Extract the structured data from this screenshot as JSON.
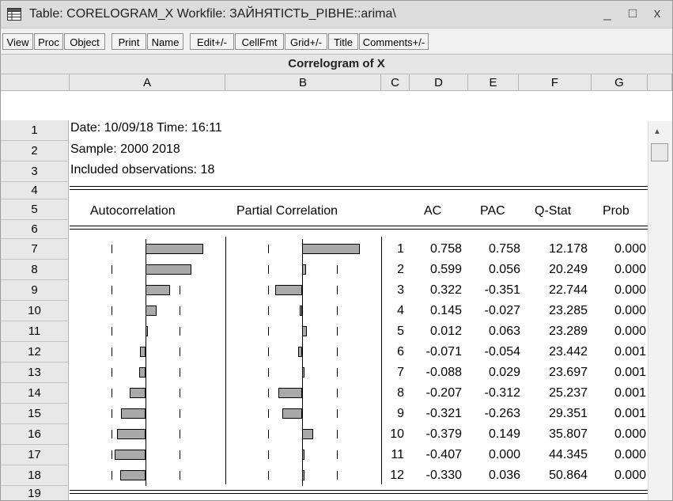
{
  "window": {
    "title": "Table: CORELOGRAM_X   Workfile: ЗАЙНЯТІСТЬ_РІВНЕ::arima\\",
    "minimize": "_",
    "maximize": "□",
    "close": "x"
  },
  "toolbar": {
    "buttons": [
      "View",
      "Proc",
      "Object",
      "Print",
      "Name",
      "Edit+/-",
      "CellFmt",
      "Grid+/-",
      "Title",
      "Comments+/-"
    ]
  },
  "table": {
    "caption": "Correlogram of X",
    "columns": [
      "A",
      "B",
      "C",
      "D",
      "E",
      "F",
      "G"
    ],
    "row_numbers": [
      "1",
      "2",
      "3",
      "4",
      "5",
      "6",
      "7",
      "8",
      "9",
      "10",
      "11",
      "12",
      "13",
      "14",
      "15",
      "16",
      "17",
      "18",
      "19"
    ],
    "date_line": "Date: 10/09/18   Time: 16:11",
    "sample_line": "Sample: 2000 2018",
    "obs_line": "Included observations: 18",
    "headers": {
      "autocorrelation": "Autocorrelation",
      "partial_correlation": "Partial Correlation",
      "ac": "AC",
      "pac": "PAC",
      "qstat": "Q-Stat",
      "prob": "Prob"
    },
    "rows": [
      {
        "lag": "1",
        "ac": "0.758",
        "pac": "0.758",
        "q": "12.178",
        "prob": "0.000"
      },
      {
        "lag": "2",
        "ac": "0.599",
        "pac": "0.056",
        "q": "20.249",
        "prob": "0.000"
      },
      {
        "lag": "3",
        "ac": "0.322",
        "pac": "-0.351",
        "q": "22.744",
        "prob": "0.000"
      },
      {
        "lag": "4",
        "ac": "0.145",
        "pac": "-0.027",
        "q": "23.285",
        "prob": "0.000"
      },
      {
        "lag": "5",
        "ac": "0.012",
        "pac": "0.063",
        "q": "23.289",
        "prob": "0.000"
      },
      {
        "lag": "6",
        "ac": "-0.071",
        "pac": "-0.054",
        "q": "23.442",
        "prob": "0.001"
      },
      {
        "lag": "7",
        "ac": "-0.088",
        "pac": "0.029",
        "q": "23.697",
        "prob": "0.001"
      },
      {
        "lag": "8",
        "ac": "-0.207",
        "pac": "-0.312",
        "q": "25.237",
        "prob": "0.001"
      },
      {
        "lag": "9",
        "ac": "-0.321",
        "pac": "-0.263",
        "q": "29.351",
        "prob": "0.001"
      },
      {
        "lag": "10",
        "ac": "-0.379",
        "pac": "0.149",
        "q": "35.807",
        "prob": "0.000"
      },
      {
        "lag": "11",
        "ac": "-0.407",
        "pac": "0.000",
        "q": "44.345",
        "prob": "0.000"
      },
      {
        "lag": "12",
        "ac": "-0.330",
        "pac": "0.036",
        "q": "50.864",
        "prob": "0.000"
      }
    ]
  },
  "colors": {
    "bar_fill": "#a9a9a9",
    "title_bg": "#dcdcdc",
    "header_bg": "#e8e8e8"
  },
  "icons": {
    "table_icon": "table-icon"
  }
}
